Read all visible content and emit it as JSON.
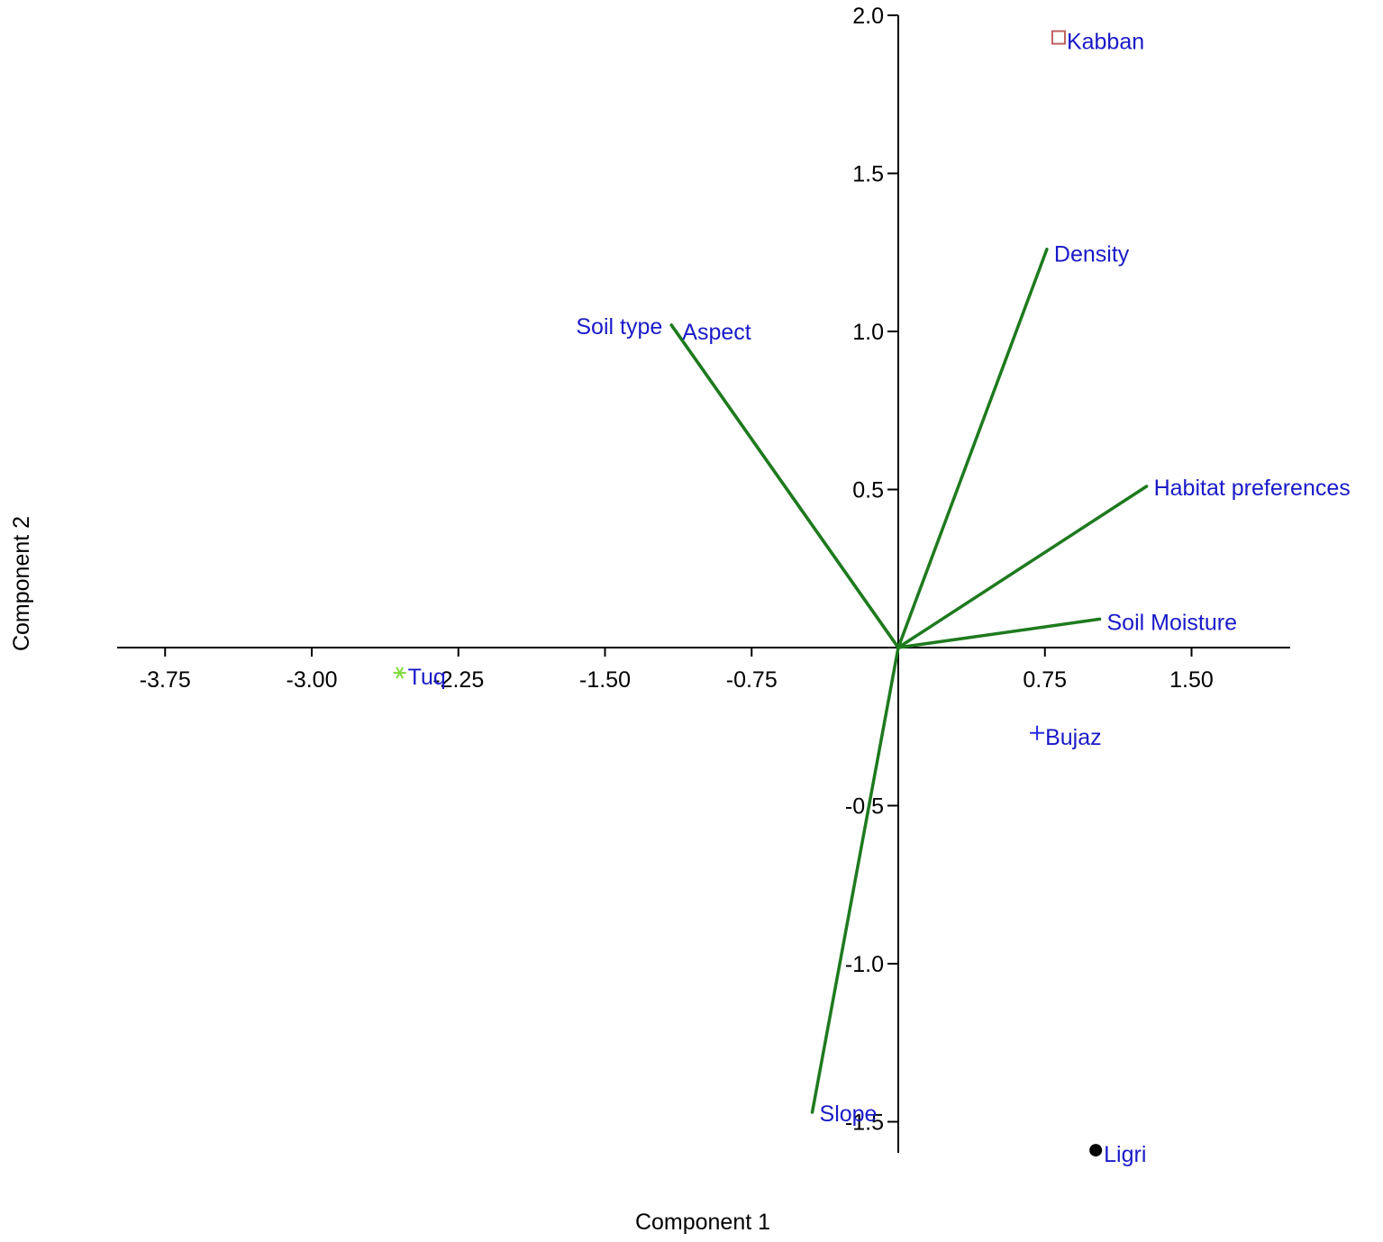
{
  "chart_data": {
    "type": "scatter",
    "subtype": "biplot",
    "title": "",
    "xlabel": "Component 1",
    "ylabel": "Component 2",
    "xlim": [
      -4.0,
      2.0
    ],
    "ylim": [
      -1.6,
      2.0
    ],
    "x_ticks": [
      {
        "value": -3.75,
        "label": "-3.75"
      },
      {
        "value": -3.0,
        "label": "-3.00"
      },
      {
        "value": -2.25,
        "label": "-2.25"
      },
      {
        "value": -1.5,
        "label": "-1.50"
      },
      {
        "value": -0.75,
        "label": "-0.75"
      },
      {
        "value": 0.75,
        "label": "0.75"
      },
      {
        "value": 1.5,
        "label": "1.50"
      }
    ],
    "y_ticks": [
      {
        "value": -1.5,
        "label": "-1.5"
      },
      {
        "value": -1.0,
        "label": "-1.0"
      },
      {
        "value": -0.5,
        "label": "-0.5"
      },
      {
        "value": 0.5,
        "label": "0.5"
      },
      {
        "value": 1.0,
        "label": "1.0"
      },
      {
        "value": 1.5,
        "label": "1.5"
      },
      {
        "value": 2.0,
        "label": "2.0"
      }
    ],
    "grid": false,
    "points": [
      {
        "name": "Kabban",
        "x": 0.82,
        "y": 1.93,
        "marker": "square",
        "color": "#c06060"
      },
      {
        "name": "Tuq",
        "x": -2.55,
        "y": -0.08,
        "marker": "star",
        "color": "#7cdc3c"
      },
      {
        "name": "Bujaz",
        "x": 0.71,
        "y": -0.27,
        "marker": "plus",
        "color": "#2a2ae0"
      },
      {
        "name": "Ligri",
        "x": 1.01,
        "y": -1.59,
        "marker": "dot",
        "color": "#000000"
      }
    ],
    "vectors": [
      {
        "name": "Density",
        "x": 0.76,
        "y": 1.26
      },
      {
        "name": "Soil type",
        "x": -1.16,
        "y": 1.02
      },
      {
        "name": "Aspect",
        "x": -1.16,
        "y": 1.02
      },
      {
        "name": "Habitat preferences",
        "x": 1.27,
        "y": 0.51
      },
      {
        "name": "Soil Moisture",
        "x": 1.03,
        "y": 0.09
      },
      {
        "name": "Slope",
        "x": -0.44,
        "y": -1.47
      }
    ],
    "vector_color": "#1e7a1e",
    "label_color": "#1a1ac8"
  }
}
